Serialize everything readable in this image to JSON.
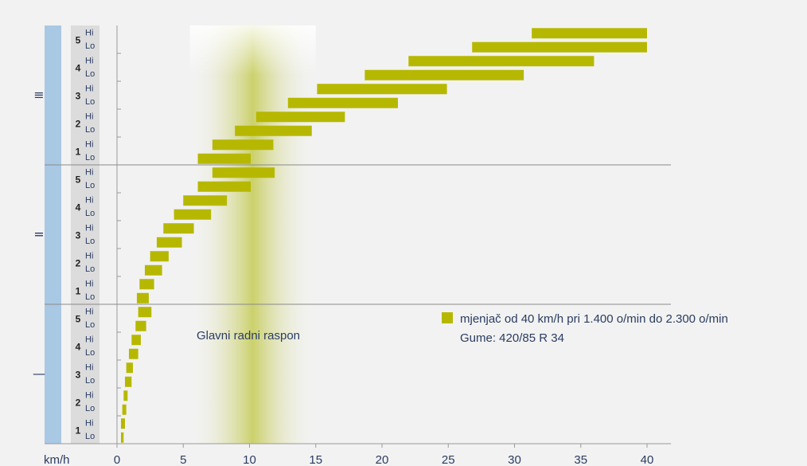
{
  "chart_data": {
    "type": "bar",
    "orientation": "horizontal-range",
    "x_unit_label": "km/h",
    "xlim": [
      0,
      40
    ],
    "x_ticks": [
      0,
      5,
      10,
      15,
      20,
      25,
      30,
      35,
      40
    ],
    "main_range": {
      "label": "Glavni radni raspon",
      "from": 5.5,
      "to": 15
    },
    "legend": {
      "line1": "mjenjač od 40 km/h pri 1.400 o/min do 2.300 o/min",
      "line2": "Gume: 420/85 R 34",
      "color": "#b6b800"
    },
    "bar_color": "#b6b800",
    "side_band_color": "#a9c8e4",
    "ranges": [
      {
        "symbol": "≡",
        "gears": [
          {
            "num": "5",
            "hi": [
              31.3,
              40
            ],
            "lo": [
              26.8,
              40
            ]
          },
          {
            "num": "4",
            "hi": [
              22,
              36
            ],
            "lo": [
              18.7,
              30.7
            ]
          },
          {
            "num": "3",
            "hi": [
              15.1,
              24.9
            ],
            "lo": [
              12.9,
              21.2
            ]
          },
          {
            "num": "2",
            "hi": [
              10.5,
              17.2
            ],
            "lo": [
              8.9,
              14.7
            ]
          },
          {
            "num": "1",
            "hi": [
              7.2,
              11.8
            ],
            "lo": [
              6.1,
              10.1
            ]
          }
        ]
      },
      {
        "symbol": "=",
        "gears": [
          {
            "num": "5",
            "hi": [
              7.2,
              11.9
            ],
            "lo": [
              6.1,
              10.1
            ]
          },
          {
            "num": "4",
            "hi": [
              5.0,
              8.3
            ],
            "lo": [
              4.3,
              7.1
            ]
          },
          {
            "num": "3",
            "hi": [
              3.5,
              5.8
            ],
            "lo": [
              3.0,
              4.9
            ]
          },
          {
            "num": "2",
            "hi": [
              2.5,
              3.9
            ],
            "lo": [
              2.1,
              3.4
            ]
          },
          {
            "num": "1",
            "hi": [
              1.7,
              2.8
            ],
            "lo": [
              1.5,
              2.4
            ]
          }
        ]
      },
      {
        "symbol": "—",
        "gears": [
          {
            "num": "5",
            "hi": [
              1.6,
              2.6
            ],
            "lo": [
              1.4,
              2.2
            ]
          },
          {
            "num": "4",
            "hi": [
              1.1,
              1.8
            ],
            "lo": [
              0.9,
              1.6
            ]
          },
          {
            "num": "3",
            "hi": [
              0.7,
              1.2
            ],
            "lo": [
              0.6,
              1.1
            ]
          },
          {
            "num": "2",
            "hi": [
              0.5,
              0.8
            ],
            "lo": [
              0.4,
              0.7
            ]
          },
          {
            "num": "1",
            "hi": [
              0.3,
              0.6
            ],
            "lo": [
              0.3,
              0.5
            ]
          }
        ]
      }
    ],
    "hi_label": "Hi",
    "lo_label": "Lo"
  }
}
